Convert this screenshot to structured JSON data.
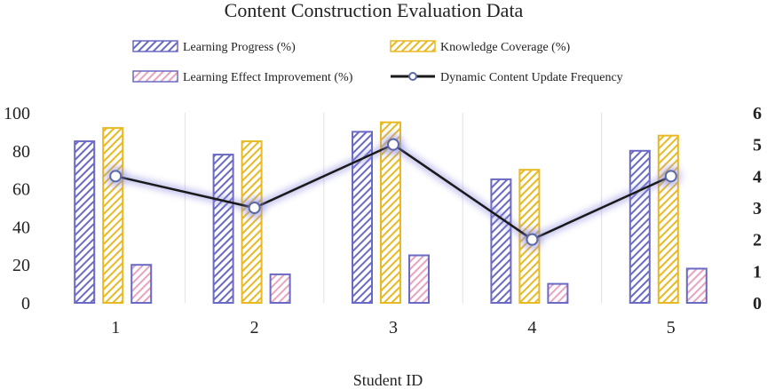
{
  "chart_data": {
    "type": "bar",
    "title": "Content Construction Evaluation Data",
    "xlabel": "Student ID",
    "ylabel": "",
    "ylabel_right": "",
    "categories": [
      "1",
      "2",
      "3",
      "4",
      "5"
    ],
    "ylim": [
      0,
      100
    ],
    "ylim_right": [
      0,
      6
    ],
    "yticks": [
      0,
      20,
      40,
      60,
      80,
      100
    ],
    "yticks_right": [
      0,
      1,
      2,
      3,
      4,
      5,
      6
    ],
    "grid": "vertical-between-categories",
    "legend_position": "top",
    "series": [
      {
        "name": "Learning Progress (%)",
        "type": "bar",
        "axis": "left",
        "values": [
          85,
          78,
          90,
          65,
          80
        ],
        "color": "#6a6ac4",
        "pattern": "hatched"
      },
      {
        "name": "Knowledge Coverage (%)",
        "type": "bar",
        "axis": "left",
        "values": [
          92,
          85,
          95,
          70,
          88
        ],
        "color": "#e8b923",
        "pattern": "hatched"
      },
      {
        "name": "Learning Effect Improvement (%)",
        "type": "bar",
        "axis": "left",
        "values": [
          20,
          15,
          25,
          10,
          18
        ],
        "color": "#e8a4c0",
        "border": "#6a6ac4",
        "pattern": "hatched"
      },
      {
        "name": "Dynamic Content Update Frequency",
        "type": "line",
        "axis": "right",
        "values": [
          4,
          3,
          5,
          2,
          4
        ],
        "color": "#1a1a1a",
        "marker_fill": "#ffffff",
        "marker_edge": "#5a6aa8"
      }
    ]
  }
}
